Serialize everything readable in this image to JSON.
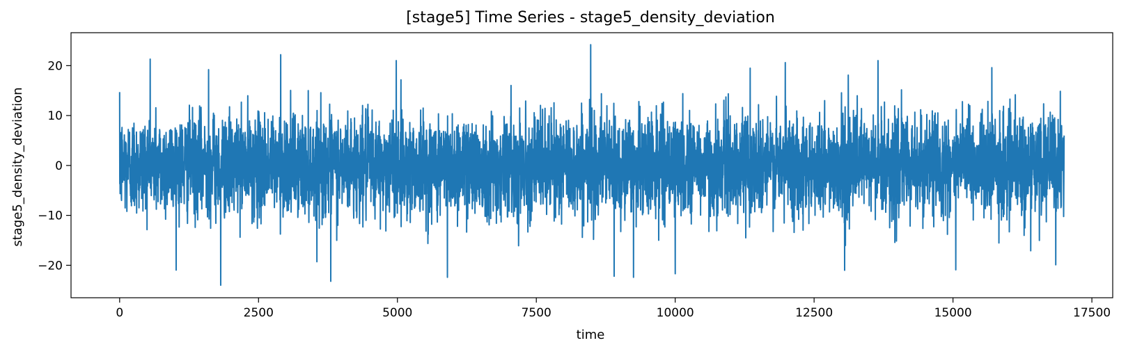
{
  "chart_data": {
    "type": "line",
    "title": "[stage5] Time Series - stage5_density_deviation",
    "xlabel": "time",
    "ylabel": "stage5_density_deviation",
    "xlim": [
      -875,
      17875
    ],
    "ylim": [
      -26.5,
      26.6
    ],
    "x_ticks": [
      0,
      2500,
      5000,
      7500,
      10000,
      12500,
      15000,
      17500
    ],
    "x_tick_labels": [
      "0",
      "2500",
      "5000",
      "7500",
      "10000",
      "12500",
      "15000",
      "17500"
    ],
    "y_ticks": [
      -20,
      -10,
      0,
      10,
      20
    ],
    "y_tick_labels": [
      "−20",
      "−10",
      "0",
      "10",
      "20"
    ],
    "grid": false,
    "series": [
      {
        "color": "#1f77b4",
        "x_start": 0,
        "x_end": 17000,
        "approx_points": 17000,
        "typical_band": [
          -10,
          10
        ],
        "min": -24.0,
        "max": 24.2,
        "peaks": [
          {
            "x": 0,
            "y": 14.7
          },
          {
            "x": 550,
            "y": 21.3
          },
          {
            "x": 1600,
            "y": 19.2
          },
          {
            "x": 1820,
            "y": -24.0
          },
          {
            "x": 2900,
            "y": 22.2
          },
          {
            "x": 3800,
            "y": -23.2
          },
          {
            "x": 4980,
            "y": 21.0
          },
          {
            "x": 5900,
            "y": -22.4
          },
          {
            "x": 8480,
            "y": 24.2
          },
          {
            "x": 8900,
            "y": -22.2
          },
          {
            "x": 9250,
            "y": -22.4
          },
          {
            "x": 10000,
            "y": -21.7
          },
          {
            "x": 11350,
            "y": 19.5
          },
          {
            "x": 11980,
            "y": 20.6
          },
          {
            "x": 13050,
            "y": -21.0
          },
          {
            "x": 13650,
            "y": 21.0
          },
          {
            "x": 15050,
            "y": -20.9
          },
          {
            "x": 15700,
            "y": 19.6
          },
          {
            "x": 16850,
            "y": -19.9
          },
          {
            "x": 17000,
            "y": 6.0
          }
        ]
      }
    ]
  }
}
